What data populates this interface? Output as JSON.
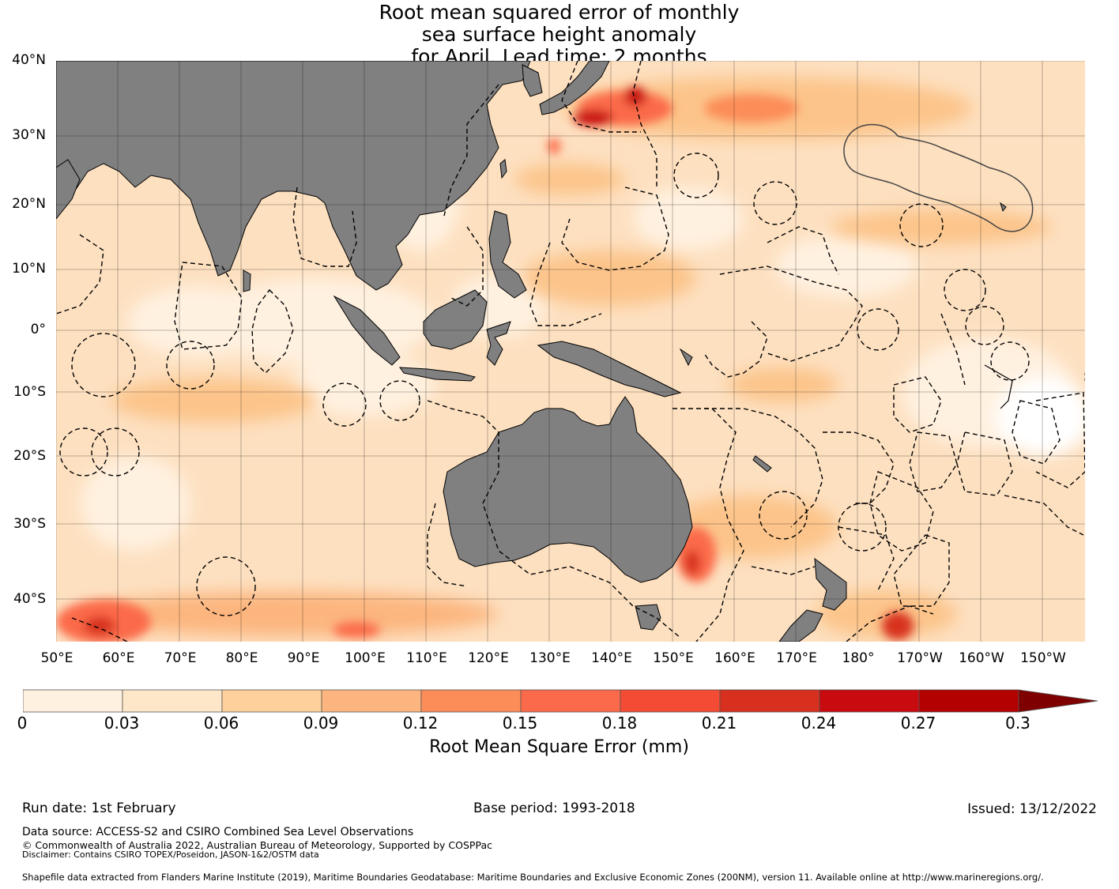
{
  "title": {
    "line1": "Root mean squared error of monthly",
    "line2": "sea surface height anomaly",
    "line3": "for April. Lead time: 2 months"
  },
  "map": {
    "lat_labels": [
      "40°N",
      "30°N",
      "20°N",
      "10°N",
      "0°",
      "10°S",
      "20°S",
      "30°S",
      "40°S"
    ],
    "lon_labels": [
      "50°E",
      "60°E",
      "70°E",
      "80°E",
      "90°E",
      "100°E",
      "110°E",
      "120°E",
      "130°E",
      "140°E",
      "150°E",
      "160°E",
      "170°E",
      "180°",
      "170°W",
      "160°W",
      "150°W"
    ],
    "land_color": "#808080",
    "ocean_base_color": "#fde0c0"
  },
  "colorbar": {
    "ticks": [
      "0",
      "0.03",
      "0.06",
      "0.09",
      "0.12",
      "0.15",
      "0.18",
      "0.21",
      "0.24",
      "0.27",
      "0.3"
    ],
    "colors": [
      "#fff1e0",
      "#fee6c8",
      "#fdd09c",
      "#fcb57e",
      "#fc8d59",
      "#fb6a4a",
      "#f44b35",
      "#d7301f",
      "#c70b0f",
      "#b30000",
      "#7f0000"
    ],
    "label": "Root Mean Square Error (mm)"
  },
  "footer": {
    "run_date": "Run date: 1st February",
    "base_period": "Base period: 1993-2018",
    "issued": "Issued: 13/12/2022",
    "data_source": "Data source: ACCESS-S2 and CSIRO Combined Sea Level Observations",
    "copyright": "© Commonwealth of Australia 2022, Australian Bureau of Meteorology, Supported by COSPPac",
    "disclaimer": "Disclaimer: Contains CSIRO TOPEX/Poseidon, JASON-1&2/OSTM data",
    "shapefile": "Shapefile data extracted from Flanders Marine Institute (2019), Maritime Boundaries Geodatabase: Maritime Boundaries and Exclusive Economic Zones (200NM), version 11. Available online at http://www.marineregions.org/."
  }
}
